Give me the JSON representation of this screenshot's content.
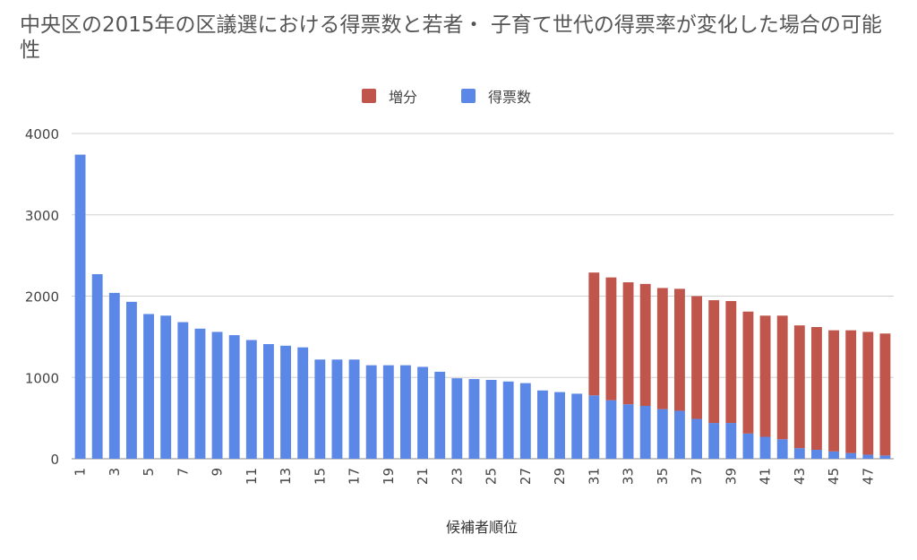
{
  "chart_data": {
    "type": "bar",
    "stacked": true,
    "title": "中央区の2015年の区議選における得票数と若者・ 子育て世代の得票率が変化した場合の可能性",
    "xlabel": "候補者順位",
    "ylabel": "",
    "ylim": [
      0,
      4000
    ],
    "yticks": [
      0,
      1000,
      2000,
      3000,
      4000
    ],
    "grid": true,
    "legend_position": "top",
    "categories": [
      1,
      2,
      3,
      4,
      5,
      6,
      7,
      8,
      9,
      10,
      11,
      12,
      13,
      14,
      15,
      16,
      17,
      18,
      19,
      20,
      21,
      22,
      23,
      24,
      25,
      26,
      27,
      28,
      29,
      30,
      31,
      32,
      33,
      34,
      35,
      36,
      37,
      38,
      39,
      40,
      41,
      42,
      43,
      44,
      45,
      46,
      47,
      48
    ],
    "xtick_labels": [
      "1",
      "3",
      "5",
      "7",
      "9",
      "11",
      "13",
      "15",
      "17",
      "19",
      "21",
      "23",
      "25",
      "27",
      "29",
      "31",
      "33",
      "35",
      "37",
      "39",
      "41",
      "43",
      "45",
      "47"
    ],
    "series": [
      {
        "name": "得票数",
        "color": "#5b87e6",
        "values": [
          3740,
          2270,
          2040,
          1930,
          1780,
          1760,
          1680,
          1600,
          1560,
          1520,
          1460,
          1410,
          1390,
          1370,
          1220,
          1220,
          1220,
          1150,
          1150,
          1150,
          1130,
          1070,
          990,
          980,
          970,
          950,
          930,
          840,
          820,
          800,
          780,
          720,
          670,
          650,
          610,
          590,
          490,
          440,
          440,
          310,
          270,
          240,
          130,
          110,
          90,
          70,
          50,
          40
        ]
      },
      {
        "name": "増分",
        "color": "#c0564b",
        "values": [
          0,
          0,
          0,
          0,
          0,
          0,
          0,
          0,
          0,
          0,
          0,
          0,
          0,
          0,
          0,
          0,
          0,
          0,
          0,
          0,
          0,
          0,
          0,
          0,
          0,
          0,
          0,
          0,
          0,
          0,
          1510,
          1510,
          1500,
          1500,
          1490,
          1500,
          1510,
          1510,
          1500,
          1500,
          1490,
          1520,
          1510,
          1510,
          1490,
          1510,
          1510,
          1500
        ]
      }
    ]
  }
}
